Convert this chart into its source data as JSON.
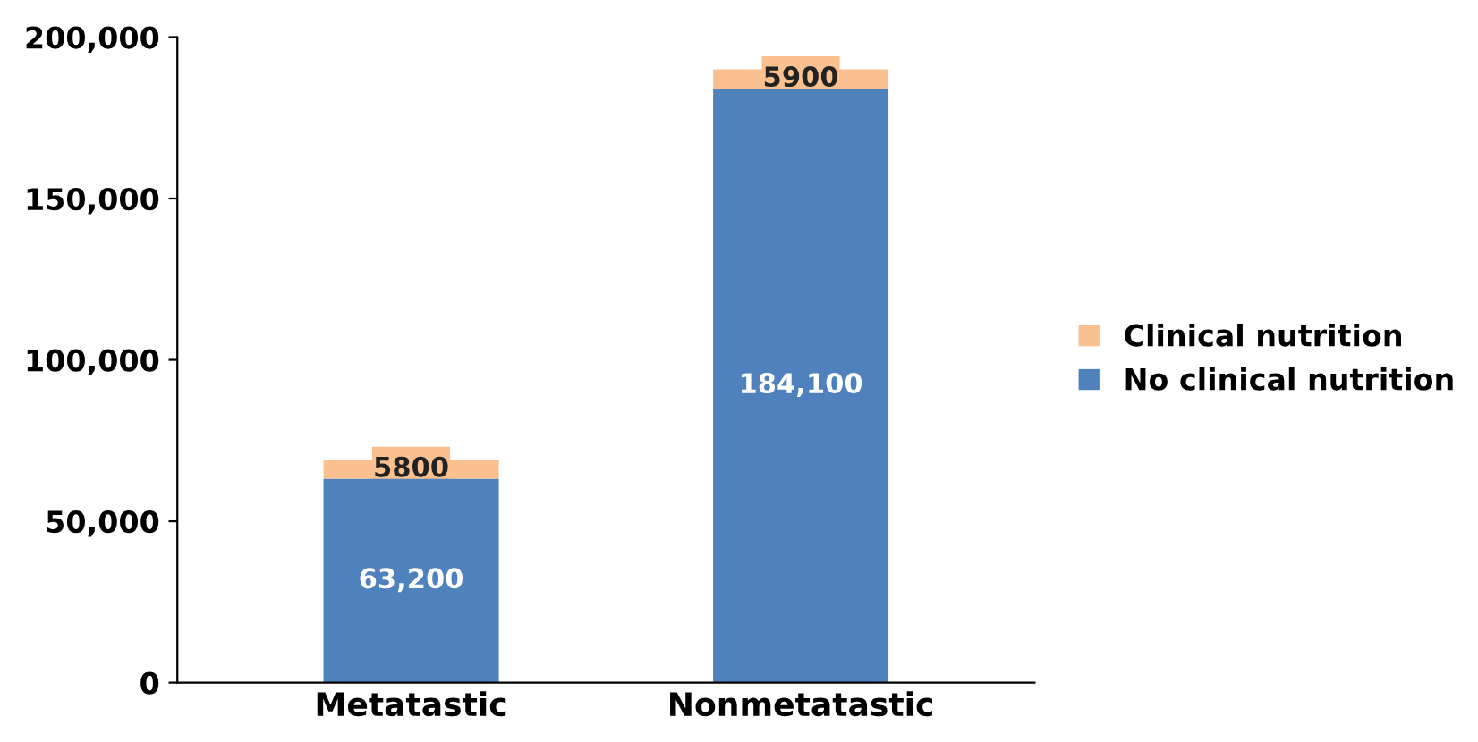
{
  "chart_data": {
    "type": "bar",
    "stacked": true,
    "categories": [
      "Metatastic",
      "Nonmetatastic"
    ],
    "series": [
      {
        "name": "No clinical nutrition",
        "color": "#4f81bd",
        "values": [
          63200,
          184100
        ],
        "value_labels": [
          "63,200",
          "184,100"
        ]
      },
      {
        "name": "Clinical nutrition",
        "color": "#fac090",
        "values": [
          5800,
          5900
        ],
        "value_labels": [
          "5800",
          "5900"
        ]
      }
    ],
    "ylim": [
      0,
      200000
    ],
    "yticks": [
      {
        "value": 0,
        "label": "0"
      },
      {
        "value": 50000,
        "label": "50,000"
      },
      {
        "value": 100000,
        "label": "100,000"
      },
      {
        "value": 150000,
        "label": "150,000"
      },
      {
        "value": 200000,
        "label": "200,000"
      }
    ],
    "grid": false,
    "legend": "right"
  }
}
